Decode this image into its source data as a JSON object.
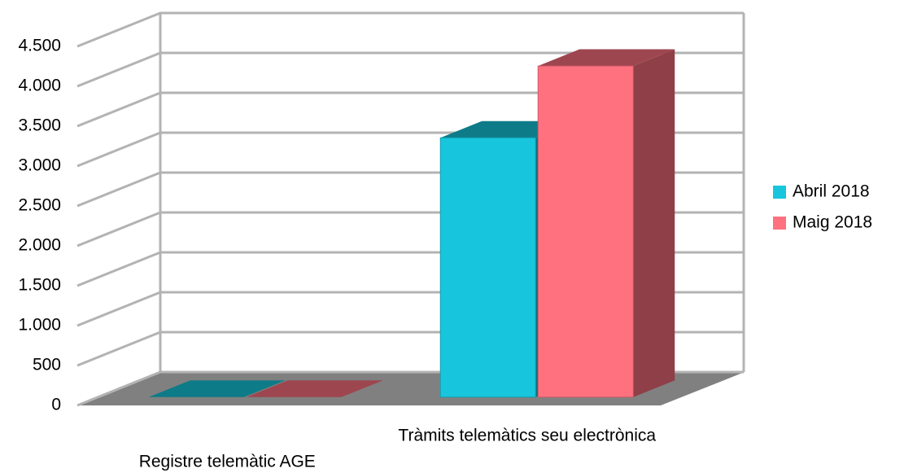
{
  "chart_data": {
    "type": "bar3d",
    "categories": [
      "Registre telemàtic AGE",
      "Tràmits telemàtics seu electrònica"
    ],
    "series": [
      {
        "name": "Abril 2018",
        "color": "#17c6dc",
        "values": [
          0,
          3250
        ]
      },
      {
        "name": "Maig 2018",
        "color": "#ff717f",
        "values": [
          0,
          4150
        ]
      }
    ],
    "ylim": [
      0,
      4500
    ],
    "yticks": [
      0,
      500,
      {
        "value": 1000,
        "label": "1.000"
      },
      {
        "value": 1500,
        "label": "1.500"
      },
      {
        "value": 2000,
        "label": "2.000"
      },
      {
        "value": 2500,
        "label": "2.500"
      },
      {
        "value": 3000,
        "label": "3.000"
      },
      {
        "value": 3500,
        "label": "3.500"
      },
      {
        "value": 4000,
        "label": "4.000"
      },
      {
        "value": 4500,
        "label": "4.500"
      }
    ],
    "grid": true,
    "legend": "right"
  }
}
